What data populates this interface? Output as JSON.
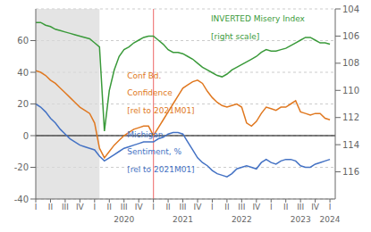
{
  "chart_data": {
    "type": "line",
    "x": [
      2019.0,
      2019.083333,
      2019.166667,
      2019.25,
      2019.333333,
      2019.416667,
      2019.5,
      2019.583333,
      2019.666667,
      2019.75,
      2019.833333,
      2019.916667,
      2020.0,
      2020.083333,
      2020.166667,
      2020.25,
      2020.333333,
      2020.416667,
      2020.5,
      2020.583333,
      2020.666667,
      2020.75,
      2020.833333,
      2020.916667,
      2021.0,
      2021.083333,
      2021.166667,
      2021.25,
      2021.333333,
      2021.416667,
      2021.5,
      2021.583333,
      2021.666667,
      2021.75,
      2021.833333,
      2021.916667,
      2022.0,
      2022.083333,
      2022.166667,
      2022.25,
      2022.333333,
      2022.416667,
      2022.5,
      2022.583333,
      2022.666667,
      2022.75,
      2022.833333,
      2022.916667,
      2023.0,
      2023.083333,
      2023.166667,
      2023.25,
      2023.333333,
      2023.416667,
      2023.5,
      2023.583333,
      2023.666667,
      2023.75,
      2023.833333,
      2023.916667,
      2024.0
    ],
    "xlim": [
      2019.0,
      2024.09
    ],
    "xticks": [
      {
        "value": 2019.0,
        "label": "I"
      },
      {
        "value": 2019.25,
        "label": "II"
      },
      {
        "value": 2019.5,
        "label": "III"
      },
      {
        "value": 2019.75,
        "label": "IV"
      },
      {
        "value": 2020.0,
        "label": "I"
      },
      {
        "value": 2020.25,
        "label": "II"
      },
      {
        "value": 2020.5,
        "label": "III"
      },
      {
        "value": 2020.75,
        "label": "IV"
      },
      {
        "value": 2021.0,
        "label": "I"
      },
      {
        "value": 2021.25,
        "label": "II"
      },
      {
        "value": 2021.5,
        "label": "III"
      },
      {
        "value": 2021.75,
        "label": "IV"
      },
      {
        "value": 2022.0,
        "label": "I"
      },
      {
        "value": 2022.25,
        "label": "II"
      },
      {
        "value": 2022.5,
        "label": "III"
      },
      {
        "value": 2022.75,
        "label": "IV"
      },
      {
        "value": 2023.0,
        "label": "I"
      },
      {
        "value": 2023.25,
        "label": "II"
      },
      {
        "value": 2023.5,
        "label": "III"
      },
      {
        "value": 2023.75,
        "label": "IV"
      },
      {
        "value": 2024.0,
        "label": "I"
      }
    ],
    "ylim": [
      -40,
      80
    ],
    "yticks": [
      -40,
      -20,
      0,
      20,
      40,
      60
    ],
    "y2lim": [
      118,
      104
    ],
    "y2ticks": [
      104,
      106,
      108,
      110,
      112,
      114,
      116
    ],
    "grid": true,
    "series": [
      {
        "color": "#e07820",
        "values": [
          41.0,
          40.0,
          38.0,
          35.0,
          33.0,
          30.0,
          27.0,
          24.0,
          21.0,
          18.0,
          16.0,
          14.0,
          8.0,
          -8.0,
          -14.0,
          -10.0,
          -6.0,
          -3.0,
          0.0,
          2.0,
          4.0,
          5.0,
          6.0,
          6.0,
          0.0,
          5.0,
          10.0,
          15.0,
          20.0,
          25.0,
          30.0,
          32.0,
          34.0,
          35.0,
          33.0,
          28.0,
          24.0,
          21.0,
          19.0,
          18.0,
          19.0,
          20.0,
          18.0,
          8.0,
          6.0,
          9.0,
          14.0,
          18.0,
          17.0,
          16.0,
          18.0,
          18.0,
          20.0,
          22.0,
          15.0,
          14.0,
          13.0,
          14.0,
          14.0,
          11.0,
          10.0
        ]
      },
      {
        "color": "#4472c4",
        "values": [
          20.0,
          18.0,
          15.0,
          11.0,
          8.0,
          4.0,
          1.0,
          -2.0,
          -4.0,
          -6.0,
          -7.0,
          -8.0,
          -9.0,
          -13.0,
          -16.0,
          -14.0,
          -12.0,
          -10.0,
          -8.0,
          -7.0,
          -6.0,
          -5.0,
          -4.0,
          -4.0,
          -4.0,
          -2.0,
          -1.0,
          1.0,
          2.0,
          2.0,
          1.0,
          -4.0,
          -9.0,
          -14.0,
          -17.0,
          -19.0,
          -22.0,
          -24.0,
          -25.0,
          -26.0,
          -24.0,
          -21.0,
          -20.0,
          -19.0,
          -20.0,
          -21.0,
          -17.0,
          -15.0,
          -17.0,
          -18.0,
          -16.0,
          -15.0,
          -15.0,
          -16.0,
          -19.0,
          -20.0,
          -20.0,
          -18.0,
          -17.0,
          -16.0,
          -15.0
        ]
      },
      {
        "color": "#3a9a3a",
        "axis": "y2",
        "values": [
          105.0,
          105.0,
          105.2,
          105.3,
          105.5,
          105.6,
          105.7,
          105.8,
          105.9,
          106.0,
          106.1,
          106.2,
          106.5,
          106.8,
          113.0,
          110.0,
          108.5,
          107.5,
          107.0,
          106.8,
          106.5,
          106.3,
          106.1,
          106.0,
          106.0,
          106.3,
          106.6,
          107.0,
          107.2,
          107.2,
          107.3,
          107.5,
          107.7,
          108.0,
          108.3,
          108.5,
          108.7,
          108.9,
          109.0,
          108.8,
          108.5,
          108.3,
          108.1,
          107.9,
          107.7,
          107.5,
          107.2,
          107.0,
          107.1,
          107.1,
          107.0,
          106.9,
          106.7,
          106.5,
          106.3,
          106.1,
          106.1,
          106.3,
          106.5,
          106.5,
          106.6
        ]
      }
    ],
    "annotations": [
      {
        "text": "INVERTED Misery Index",
        "color": "#3a9a3a"
      },
      {
        "text": "[right scale]",
        "color": "#3a9a3a"
      },
      {
        "text": "Conf Bd.",
        "color": "#e07820"
      },
      {
        "text": "Confidence",
        "color": "#e07820"
      },
      {
        "text": "[rel to 2021M01]",
        "color": "#e07820"
      },
      {
        "text": "Michigan",
        "color": "#4472c4"
      },
      {
        "text": "Sentiment, %",
        "color": "#4472c4"
      },
      {
        "text": "[rel to 2021M01]",
        "color": "#4472c4"
      }
    ],
    "year_labels": [
      {
        "text": "2020",
        "x": 2020.5
      },
      {
        "text": "2021",
        "x": 2021.5
      },
      {
        "text": "2022",
        "x": 2022.5
      },
      {
        "text": "2023",
        "x": 2023.5
      },
      {
        "text": "2024",
        "x": 2024.0
      }
    ],
    "shaded_span": {
      "x": [
        2019.0,
        2020.083
      ],
      "color": "#d8d8d8"
    },
    "vline": {
      "x": 2021.0,
      "color": "#f08080"
    },
    "hline": {
      "y": 0,
      "color": "#000000"
    }
  }
}
